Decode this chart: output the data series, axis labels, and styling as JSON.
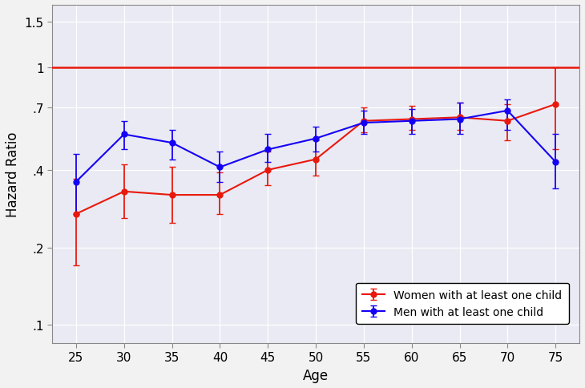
{
  "ages": [
    25,
    30,
    35,
    40,
    45,
    50,
    55,
    60,
    65,
    70,
    75
  ],
  "women_hr": [
    0.27,
    0.33,
    0.32,
    0.32,
    0.4,
    0.44,
    0.62,
    0.63,
    0.64,
    0.62,
    0.72
  ],
  "women_lo": [
    0.17,
    0.26,
    0.25,
    0.27,
    0.35,
    0.38,
    0.56,
    0.57,
    0.57,
    0.52,
    0.48
  ],
  "women_hi": [
    0.37,
    0.42,
    0.41,
    0.39,
    0.47,
    0.52,
    0.7,
    0.71,
    0.73,
    0.72,
    1.0
  ],
  "men_hr": [
    0.36,
    0.55,
    0.51,
    0.41,
    0.48,
    0.53,
    0.61,
    0.62,
    0.63,
    0.68,
    0.43
  ],
  "men_lo": [
    0.27,
    0.48,
    0.44,
    0.36,
    0.43,
    0.47,
    0.55,
    0.55,
    0.55,
    0.57,
    0.34
  ],
  "men_hi": [
    0.46,
    0.62,
    0.57,
    0.47,
    0.55,
    0.59,
    0.68,
    0.69,
    0.73,
    0.75,
    0.55
  ],
  "ref_line": 1.0,
  "women_color": "#e8190c",
  "men_color": "#1400f5",
  "ref_color": "#e8190c",
  "plot_bg": "#eaeaf4",
  "fig_bg": "#f2f2f2",
  "grid_color": "#ffffff",
  "ylabel": "Hazard Ratio",
  "xlabel": "Age",
  "legend_women": "Women with at least one child",
  "legend_men": "Men with at least one child",
  "yticks": [
    0.1,
    0.2,
    0.4,
    0.7,
    1.0,
    1.5
  ],
  "ytick_labels": [
    ".1",
    ".2",
    ".4",
    ".7",
    "1",
    "1.5"
  ],
  "marker": "o",
  "markersize": 5,
  "linewidth": 1.5,
  "capsize": 3,
  "elinewidth": 1.3
}
